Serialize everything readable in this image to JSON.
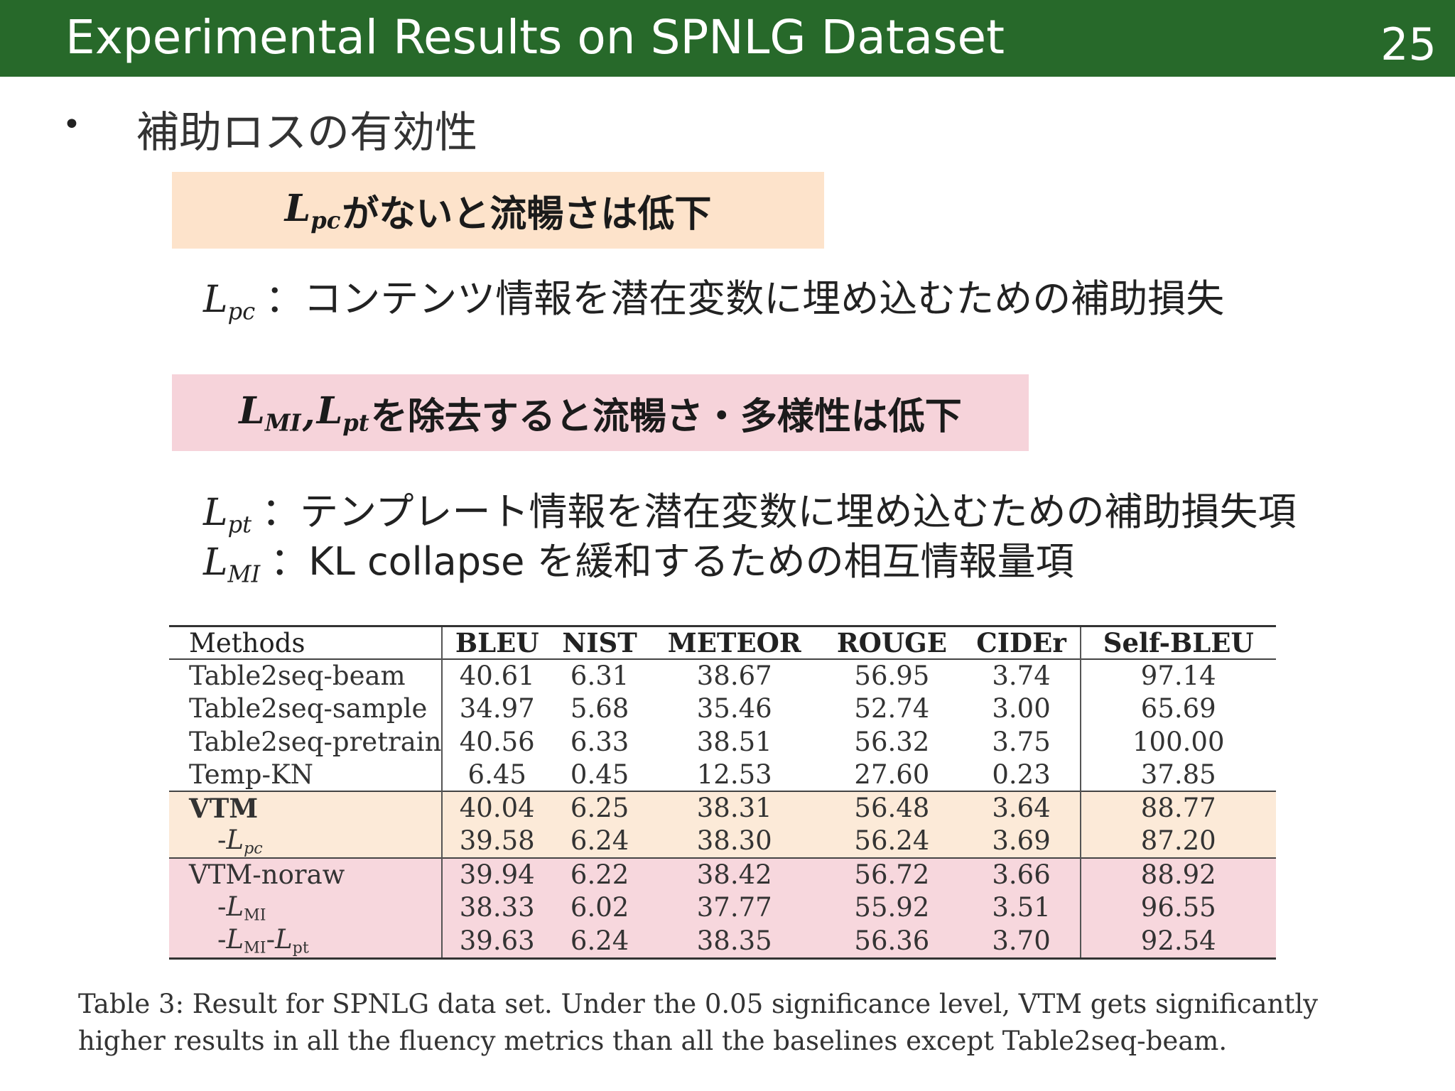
{
  "header": {
    "title": "Experimental Results on SPNLG Dataset",
    "page_number": "25"
  },
  "bullet": {
    "text": "補助ロスの有効性"
  },
  "box1": {
    "math_base": "L",
    "math_sub": "pc",
    "text": "がないと流暢さは低下"
  },
  "def_pc": {
    "math_base": "L",
    "math_sub": "pc",
    "text": "：コンテンツ情報を潜在変数に埋め込むための補助損失"
  },
  "box2": {
    "math1_base": "L",
    "math1_sub": "MI",
    "comma": ",",
    "math2_base": "L",
    "math2_sub": "pt",
    "text": "を除去すると流暢さ・多様性は低下"
  },
  "def_pt": {
    "math_base": "L",
    "math_sub": "pt",
    "text": "：テンプレート情報を潜在変数に埋め込むための補助損失項"
  },
  "def_mi": {
    "math_base": "L",
    "math_sub": "MI",
    "text": "：KL collapse を緩和するための相互情報量項"
  },
  "table": {
    "headers": [
      "Methods",
      "BLEU",
      "NIST",
      "METEOR",
      "ROUGE",
      "CIDEr",
      "Self-BLEU"
    ],
    "rows": [
      {
        "method": "Table2seq-beam",
        "values": [
          "40.61",
          "6.31",
          "38.67",
          "56.95",
          "3.74",
          "97.14"
        ]
      },
      {
        "method": "Table2seq-sample",
        "values": [
          "34.97",
          "5.68",
          "35.46",
          "52.74",
          "3.00",
          "65.69"
        ]
      },
      {
        "method": "Table2seq-pretrain",
        "values": [
          "40.56",
          "6.33",
          "38.51",
          "56.32",
          "3.75",
          "100.00"
        ]
      },
      {
        "method": "Temp-KN",
        "values": [
          "6.45",
          "0.45",
          "12.53",
          "27.60",
          "0.23",
          "37.85"
        ]
      },
      {
        "method": "VTM",
        "values": [
          "40.04",
          "6.25",
          "38.31",
          "56.48",
          "3.64",
          "88.77"
        ]
      },
      {
        "method_prefix": "-",
        "method_script": "L",
        "method_sub": "pc",
        "values": [
          "39.58",
          "6.24",
          "38.30",
          "56.24",
          "3.69",
          "87.20"
        ]
      },
      {
        "method": "VTM-noraw",
        "values": [
          "39.94",
          "6.22",
          "38.42",
          "56.72",
          "3.66",
          "88.92"
        ]
      },
      {
        "method_prefix": "-",
        "method_script": "L",
        "method_sub": "MI",
        "values": [
          "38.33",
          "6.02",
          "37.77",
          "55.92",
          "3.51",
          "96.55"
        ]
      },
      {
        "method_prefix": "-",
        "method_script": "L",
        "method_sub": "MI",
        "method_mid": "-",
        "method_script2": "L",
        "method_sub2": "pt",
        "values": [
          "39.63",
          "6.24",
          "38.35",
          "56.36",
          "3.70",
          "92.54"
        ]
      }
    ],
    "highlight_colors": {
      "orange": "#fcead8",
      "pink": "#f7d7dd"
    }
  },
  "caption": "Table 3: Result for SPNLG data set. Under the 0.05 significance level, VTM gets significantly higher results in all the fluency metrics than all the baselines except Table2seq-beam.",
  "colors": {
    "header_bg": "#27692a",
    "box1_bg": "#fde3cb",
    "box2_bg": "#f6d3da"
  }
}
